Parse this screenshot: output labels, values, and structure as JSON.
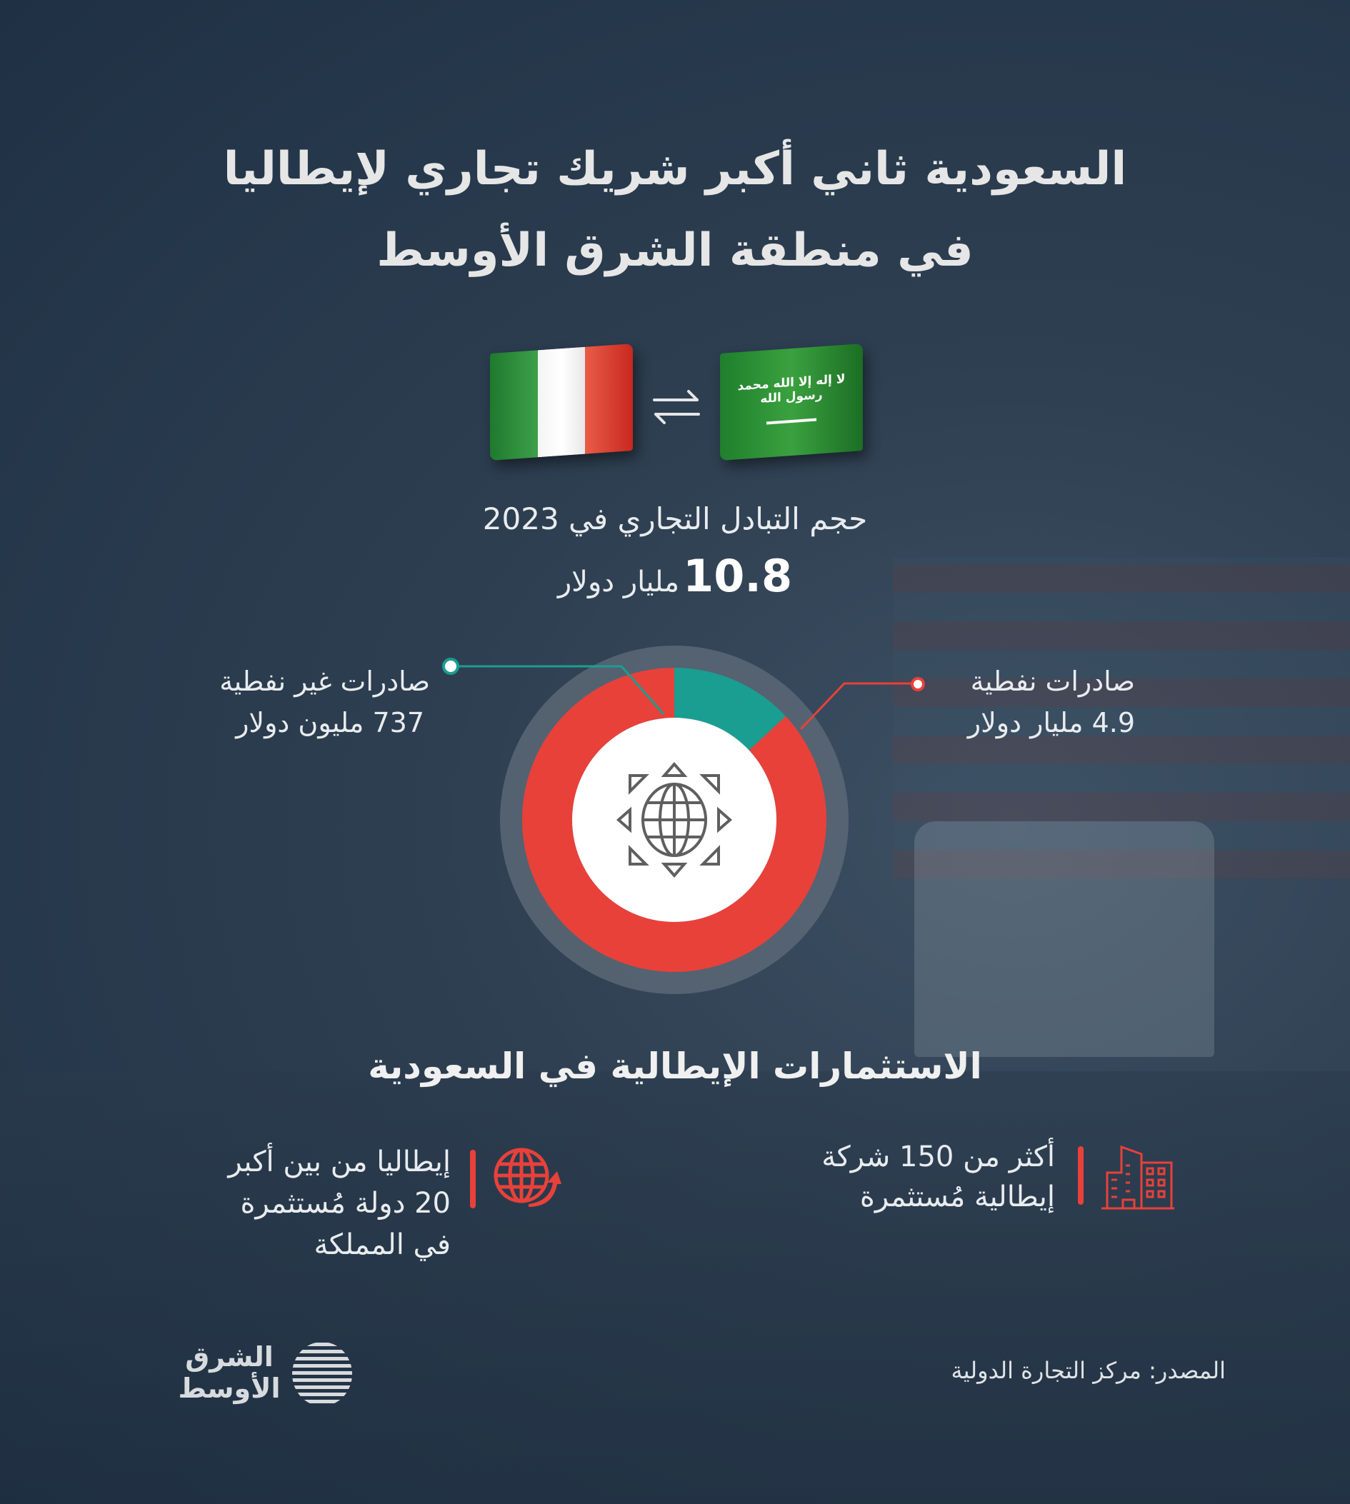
{
  "title": {
    "line1": "السعودية ثاني أكبر  شريك تجاري لإيطاليا",
    "line2": "في منطقة الشرق الأوسط"
  },
  "flags": {
    "left": "italy-flag",
    "right": "saudi-flag",
    "saudi_flag_text": "لا إله إلا الله محمد رسول الله",
    "exchange_icon": "exchange-arrows-icon"
  },
  "trade": {
    "caption": "حجم التبادل التجاري في 2023",
    "value": "10.8",
    "unit": "مليار دولار"
  },
  "chart_data": {
    "type": "pie",
    "variant": "donut",
    "center_icon": "globe-icon",
    "slices": [
      {
        "label": "صادرات نفطية",
        "value_text": "4.9 مليار دولار",
        "value": 4900,
        "color": "#e8413a"
      },
      {
        "label": "صادرات غير نفطية",
        "value_text": "737 مليون دولار",
        "value": 737,
        "color": "#1a9e91"
      }
    ],
    "unit": "million USD"
  },
  "investments": {
    "heading": "الاستثمارات الإيطالية في السعودية",
    "items": [
      {
        "icon": "building-icon",
        "lines": [
          "أكثر من 150 شركة",
          "إيطالية مُستثمرة"
        ]
      },
      {
        "icon": "globe-arrow-icon",
        "lines": [
          "إيطاليا من بين أكبر",
          "20 دولة مُستثمرة",
          "في المملكة"
        ]
      }
    ]
  },
  "footer": {
    "source": "المصدر: مركز التجارة الدولية",
    "logo_text": "الشرق الأوسط"
  },
  "colors": {
    "accent_red": "#e8413a",
    "accent_teal": "#1a9e91",
    "background": "#2b3c4e"
  }
}
